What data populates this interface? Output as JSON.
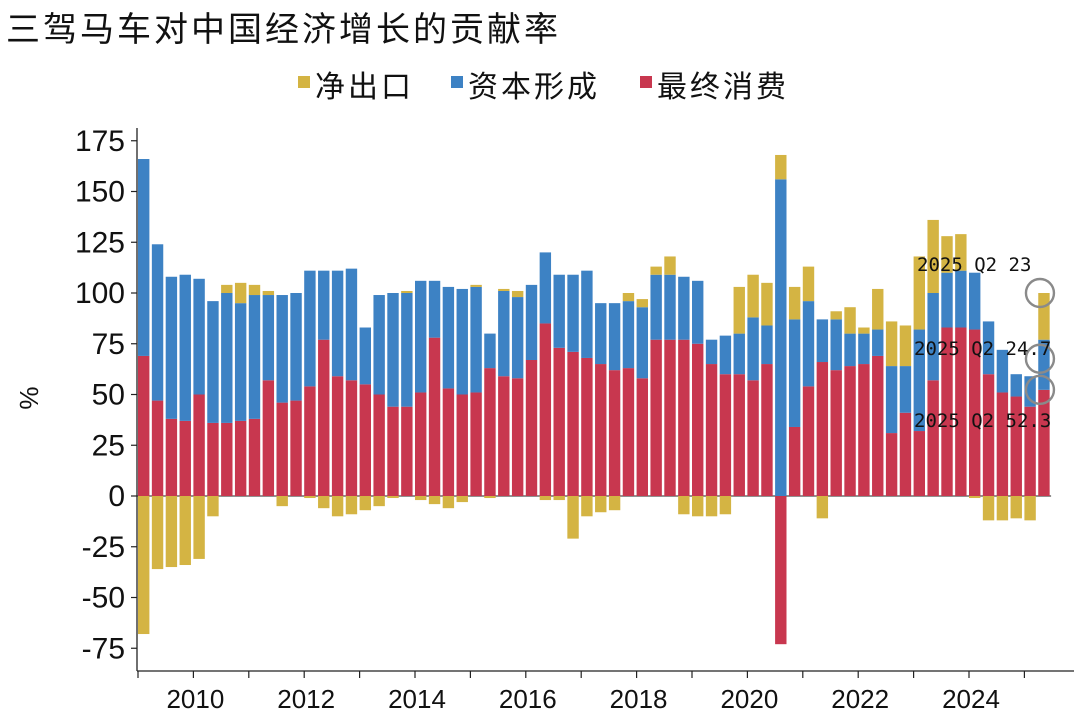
{
  "chart_data": {
    "type": "bar",
    "stacked": true,
    "title": "三驾马车对中国经济增长的贡献率",
    "ylabel": "%",
    "xlabel": "",
    "ylim": [
      -80,
      180
    ],
    "yticks": [
      175,
      150,
      125,
      100,
      75,
      50,
      25,
      0,
      -25,
      -50,
      -75
    ],
    "ytick_labels": [
      "175",
      "150",
      "125",
      "100",
      "75",
      "50",
      "25",
      "0",
      "-25",
      "-50",
      "-75"
    ],
    "xtick_labels": [
      "2010",
      "2012",
      "2014",
      "2016",
      "2018",
      "2020",
      "2022",
      "2024"
    ],
    "grid": false,
    "legend_position": "top",
    "x_quarters": [
      "2009Q1",
      "2009Q2",
      "2009Q3",
      "2009Q4",
      "2010Q1",
      "2010Q2",
      "2010Q3",
      "2010Q4",
      "2011Q1",
      "2011Q2",
      "2011Q3",
      "2011Q4",
      "2012Q1",
      "2012Q2",
      "2012Q3",
      "2012Q4",
      "2013Q1",
      "2013Q2",
      "2013Q3",
      "2013Q4",
      "2014Q1",
      "2014Q2",
      "2014Q3",
      "2014Q4",
      "2015Q1",
      "2015Q2",
      "2015Q3",
      "2015Q4",
      "2016Q1",
      "2016Q2",
      "2016Q3",
      "2016Q4",
      "2017Q1",
      "2017Q2",
      "2017Q3",
      "2017Q4",
      "2018Q1",
      "2018Q2",
      "2018Q3",
      "2018Q4",
      "2019Q1",
      "2019Q2",
      "2019Q3",
      "2019Q4",
      "2020Q1",
      "2020Q2",
      "2020Q3",
      "2020Q4",
      "2021Q1",
      "2021Q2",
      "2021Q3",
      "2021Q4",
      "2022Q1",
      "2022Q2",
      "2022Q3",
      "2022Q4",
      "2023Q1",
      "2023Q2",
      "2023Q3",
      "2023Q4",
      "2024Q1",
      "2024Q2",
      "2024Q3",
      "2024Q4",
      "2025Q1",
      "2025Q2"
    ],
    "series": [
      {
        "name": "最终消费",
        "color": "#c8374f",
        "values": [
          69,
          47,
          38,
          37,
          50,
          36,
          36,
          37,
          38,
          57,
          46,
          47,
          54,
          77,
          59,
          57,
          55,
          50,
          44,
          44,
          51,
          78,
          53,
          50,
          51,
          63,
          59,
          58,
          67,
          85,
          73,
          71,
          68,
          65,
          62,
          63,
          58,
          77,
          77,
          77,
          75,
          65,
          60,
          60,
          57,
          65,
          -73,
          34,
          54,
          66,
          62,
          64,
          65,
          69,
          31,
          41,
          32,
          57,
          83,
          83,
          82,
          60,
          51,
          49,
          44,
          52.3
        ]
      },
      {
        "name": "资本形成",
        "color": "#3d82c4",
        "values": [
          97,
          77,
          70,
          72,
          57,
          60,
          64,
          58,
          61,
          42,
          53,
          53,
          57,
          34,
          52,
          55,
          28,
          49,
          56,
          56,
          55,
          28,
          50,
          52,
          52,
          17,
          42,
          40,
          37,
          35,
          36,
          38,
          43,
          30,
          33,
          33,
          35,
          32,
          32,
          31,
          31,
          12,
          19,
          20,
          31,
          19,
          156,
          53,
          42,
          21,
          25,
          16,
          15,
          13,
          33,
          23,
          50,
          43,
          27,
          28,
          28,
          26,
          21,
          11,
          15,
          24.7
        ]
      },
      {
        "name": "净出口",
        "color": "#d4b443",
        "values": [
          -68,
          -36,
          -35,
          -34,
          -31,
          -10,
          4,
          10,
          5,
          2,
          -5,
          0,
          -1,
          -6,
          -10,
          -9,
          -7,
          -5,
          -1,
          1,
          -2,
          -4,
          -6,
          -3,
          1,
          -1,
          1,
          3,
          0,
          -2,
          -2,
          -21,
          -10,
          -8,
          -7,
          4,
          4,
          4,
          9,
          -9,
          -10,
          -10,
          -9,
          23,
          21,
          21,
          12,
          16,
          17,
          -11,
          4,
          13,
          3,
          20,
          22,
          20,
          36,
          36,
          18,
          18,
          -1,
          -12,
          -12,
          -11,
          -12,
          23
        ]
      }
    ],
    "annotations": [
      "2025 Q2 23",
      "2025 Q2 24.7",
      "2025 Q2 52.3"
    ]
  }
}
